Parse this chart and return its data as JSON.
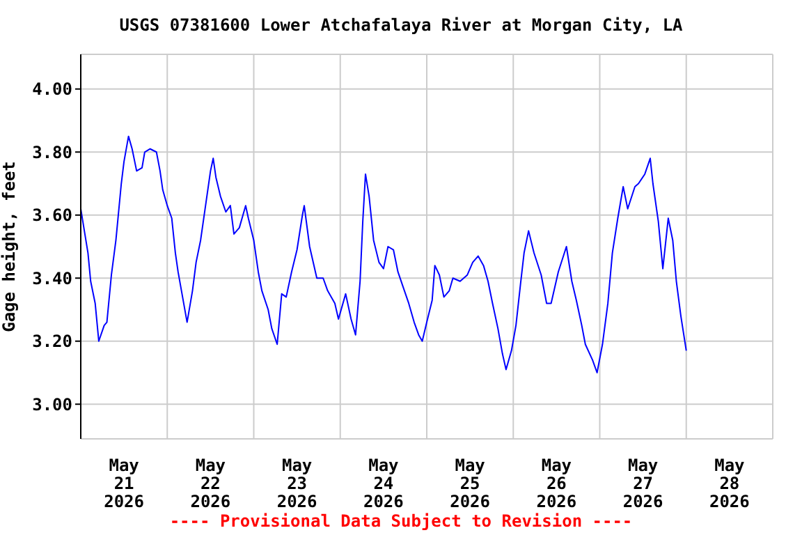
{
  "chart_data": {
    "type": "line",
    "title": "USGS 07381600 Lower Atchafalaya River at Morgan City, LA",
    "ylabel": "Gage height, feet",
    "annotations": [
      "---- Provisional Data Subject to Revision ----"
    ],
    "x": [
      "2026-05-21T00:00",
      "2026-05-21T02:00",
      "2026-05-21T02:45",
      "2026-05-21T04:00",
      "2026-05-21T05:00",
      "2026-05-21T06:30",
      "2026-05-21T07:15",
      "2026-05-21T08:30",
      "2026-05-21T09:45",
      "2026-05-21T11:15",
      "2026-05-21T12:00",
      "2026-05-21T13:15",
      "2026-05-21T14:15",
      "2026-05-21T15:30",
      "2026-05-21T17:00",
      "2026-05-21T17:45",
      "2026-05-21T19:15",
      "2026-05-21T21:00",
      "2026-05-21T22:00",
      "2026-05-21T22:45",
      "2026-05-22T00:00",
      "2026-05-22T01:15",
      "2026-05-22T02:15",
      "2026-05-22T03:00",
      "2026-05-22T04:15",
      "2026-05-22T05:30",
      "2026-05-22T07:00",
      "2026-05-22T08:00",
      "2026-05-22T09:15",
      "2026-05-22T10:45",
      "2026-05-22T12:00",
      "2026-05-22T12:45",
      "2026-05-22T13:30",
      "2026-05-22T14:45",
      "2026-05-22T16:15",
      "2026-05-22T17:30",
      "2026-05-22T18:30",
      "2026-05-22T20:00",
      "2026-05-22T21:45",
      "2026-05-22T22:30",
      "2026-05-23T00:00",
      "2026-05-23T01:15",
      "2026-05-23T02:15",
      "2026-05-23T04:00",
      "2026-05-23T05:00",
      "2026-05-23T06:30",
      "2026-05-23T07:45",
      "2026-05-23T09:00",
      "2026-05-23T10:30",
      "2026-05-23T12:00",
      "2026-05-23T13:30",
      "2026-05-23T14:00",
      "2026-05-23T15:30",
      "2026-05-23T17:30",
      "2026-05-23T19:15",
      "2026-05-23T20:30",
      "2026-05-23T22:30",
      "2026-05-23T23:30",
      "2026-05-24T01:30",
      "2026-05-24T03:00",
      "2026-05-24T04:15",
      "2026-05-24T05:30",
      "2026-05-24T06:15",
      "2026-05-24T07:00",
      "2026-05-24T08:00",
      "2026-05-24T09:15",
      "2026-05-24T10:45",
      "2026-05-24T12:00",
      "2026-05-24T13:15",
      "2026-05-24T14:45",
      "2026-05-24T16:00",
      "2026-05-24T17:30",
      "2026-05-24T19:00",
      "2026-05-24T20:30",
      "2026-05-24T21:45",
      "2026-05-24T22:45",
      "2026-05-25T00:00",
      "2026-05-25T01:30",
      "2026-05-25T02:15",
      "2026-05-25T03:30",
      "2026-05-25T04:45",
      "2026-05-25T06:15",
      "2026-05-25T07:15",
      "2026-05-25T09:15",
      "2026-05-25T11:15",
      "2026-05-25T12:45",
      "2026-05-25T14:15",
      "2026-05-25T15:45",
      "2026-05-25T17:00",
      "2026-05-25T18:15",
      "2026-05-25T19:45",
      "2026-05-25T21:00",
      "2026-05-25T22:00",
      "2026-05-25T23:30",
      "2026-05-26T00:45",
      "2026-05-26T02:00",
      "2026-05-26T03:00",
      "2026-05-26T04:15",
      "2026-05-26T05:45",
      "2026-05-26T07:45",
      "2026-05-26T09:15",
      "2026-05-26T10:30",
      "2026-05-26T12:30",
      "2026-05-26T14:45",
      "2026-05-26T16:15",
      "2026-05-26T17:30",
      "2026-05-26T19:00",
      "2026-05-26T20:00",
      "2026-05-26T22:00",
      "2026-05-26T23:15",
      "2026-05-27T00:45",
      "2026-05-27T02:15",
      "2026-05-27T03:30",
      "2026-05-27T05:00",
      "2026-05-27T06:30",
      "2026-05-27T07:45",
      "2026-05-27T09:45",
      "2026-05-27T10:45",
      "2026-05-27T12:30",
      "2026-05-27T14:00",
      "2026-05-27T14:45",
      "2026-05-27T16:15",
      "2026-05-27T17:30",
      "2026-05-27T19:00",
      "2026-05-27T20:15",
      "2026-05-27T21:15",
      "2026-05-27T22:30",
      "2026-05-28T00:00"
    ],
    "series": [
      {
        "color": "#0000ff",
        "values": [
          3.62,
          3.48,
          3.39,
          3.32,
          3.2,
          3.25,
          3.26,
          3.41,
          3.52,
          3.7,
          3.77,
          3.85,
          3.81,
          3.74,
          3.75,
          3.8,
          3.81,
          3.8,
          3.74,
          3.68,
          3.63,
          3.59,
          3.48,
          3.42,
          3.34,
          3.26,
          3.36,
          3.45,
          3.52,
          3.64,
          3.74,
          3.78,
          3.72,
          3.66,
          3.61,
          3.63,
          3.54,
          3.56,
          3.63,
          3.59,
          3.52,
          3.42,
          3.36,
          3.3,
          3.24,
          3.19,
          3.35,
          3.34,
          3.42,
          3.49,
          3.6,
          3.63,
          3.5,
          3.4,
          3.4,
          3.36,
          3.32,
          3.27,
          3.35,
          3.27,
          3.22,
          3.39,
          3.58,
          3.73,
          3.66,
          3.52,
          3.45,
          3.43,
          3.5,
          3.49,
          3.42,
          3.37,
          3.32,
          3.26,
          3.22,
          3.2,
          3.26,
          3.33,
          3.44,
          3.41,
          3.34,
          3.36,
          3.4,
          3.39,
          3.41,
          3.45,
          3.47,
          3.44,
          3.39,
          3.32,
          3.24,
          3.16,
          3.11,
          3.17,
          3.25,
          3.38,
          3.48,
          3.55,
          3.48,
          3.41,
          3.32,
          3.32,
          3.42,
          3.5,
          3.39,
          3.33,
          3.25,
          3.19,
          3.14,
          3.1,
          3.19,
          3.32,
          3.48,
          3.59,
          3.69,
          3.62,
          3.69,
          3.7,
          3.73,
          3.78,
          3.7,
          3.58,
          3.43,
          3.59,
          3.52,
          3.39,
          3.28,
          3.17
        ]
      }
    ],
    "xlim": [
      "2026-05-21T00:00",
      "2026-05-29T00:00"
    ],
    "xticks": [
      {
        "value": "2026-05-21T00:00",
        "label": null
      },
      {
        "value": "2026-05-21T12:00",
        "label": "May 21 2026"
      },
      {
        "value": "2026-05-22T00:00",
        "label": null
      },
      {
        "value": "2026-05-22T12:00",
        "label": "May 22 2026"
      },
      {
        "value": "2026-05-23T00:00",
        "label": null
      },
      {
        "value": "2026-05-23T12:00",
        "label": "May 23 2026"
      },
      {
        "value": "2026-05-24T00:00",
        "label": null
      },
      {
        "value": "2026-05-24T12:00",
        "label": "May 24 2026"
      },
      {
        "value": "2026-05-25T00:00",
        "label": null
      },
      {
        "value": "2026-05-25T12:00",
        "label": "May 25 2026"
      },
      {
        "value": "2026-05-26T00:00",
        "label": null
      },
      {
        "value": "2026-05-26T12:00",
        "label": "May 26 2026"
      },
      {
        "value": "2026-05-27T00:00",
        "label": null
      },
      {
        "value": "2026-05-27T12:00",
        "label": "May 27 2026"
      },
      {
        "value": "2026-05-28T00:00",
        "label": null
      },
      {
        "value": "2026-05-28T12:00",
        "label": "May 28 2026"
      },
      {
        "value": "2026-05-29T00:00",
        "label": null
      }
    ],
    "ylim": [
      2.89,
      4.11
    ],
    "yticks": [
      {
        "value": 3.0,
        "label": "3.00"
      },
      {
        "value": 3.2,
        "label": "3.20"
      },
      {
        "value": 3.4,
        "label": "3.40"
      },
      {
        "value": 3.6,
        "label": "3.60"
      },
      {
        "value": 3.8,
        "label": "3.80"
      },
      {
        "value": 4.0,
        "label": "4.00"
      }
    ],
    "grid": true,
    "line_style": "solid"
  }
}
